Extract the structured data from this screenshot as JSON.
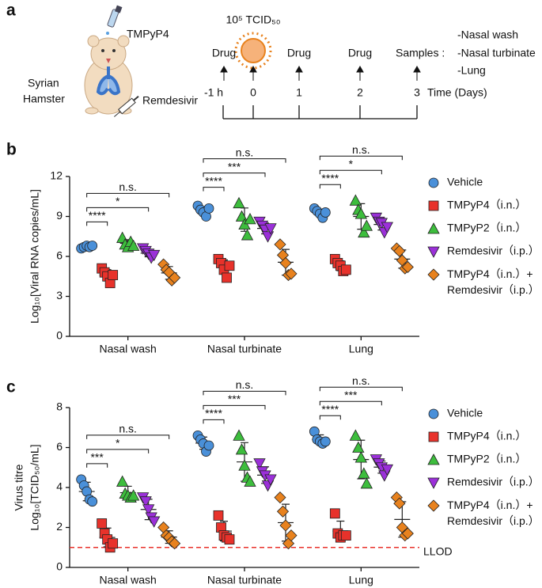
{
  "schematic": {
    "panel": "a",
    "drug_label": "TMPyP4",
    "animal": [
      "Syrian",
      "Hamster"
    ],
    "injection": "Remdesivir",
    "inoculum": "10⁵ TCID₅₀",
    "drug_events": [
      "Drug",
      "Drug",
      "Drug"
    ],
    "samples_label": "Samples :",
    "samples": [
      "-Nasal wash",
      "-Nasal turbinate",
      "-Lung"
    ],
    "timepoints": [
      "-1 h",
      "0",
      "1",
      "2",
      "3"
    ],
    "time_axis": "Time (Days)"
  },
  "chart_data": [
    {
      "type": "dot_plot",
      "panel": "b",
      "ylabel_lines": [
        "Log₁₀[Viral RNA copies/mL]"
      ],
      "categories": [
        "Nasal wash",
        "Nasal turbinate",
        "Lung"
      ],
      "ylim": [
        0,
        12
      ],
      "yticks": [
        0,
        3,
        6,
        9,
        12
      ],
      "series": [
        {
          "name": "Vehicle",
          "color": "#4a90d9",
          "marker": "circle",
          "values": [
            [
              6.6,
              6.7,
              6.8,
              6.7,
              6.8
            ],
            [
              9.8,
              9.5,
              9.3,
              9.0,
              9.6
            ],
            [
              9.6,
              9.4,
              9.2,
              8.9,
              9.3
            ]
          ]
        },
        {
          "name": "TMPyP4（i.n.）",
          "color": "#e8322b",
          "marker": "square",
          "values": [
            [
              5.1,
              4.8,
              4.5,
              4.0,
              4.6
            ],
            [
              5.8,
              5.5,
              5.0,
              4.4,
              5.3
            ],
            [
              5.8,
              5.5,
              5.3,
              4.9,
              5.0
            ]
          ]
        },
        {
          "name": "TMPyP2（i.n.）",
          "color": "#3dbd3d",
          "marker": "triangle-up",
          "values": [
            [
              7.4,
              6.9,
              6.7,
              7.1,
              6.8
            ],
            [
              10.0,
              9.0,
              8.4,
              7.6,
              8.8
            ],
            [
              10.2,
              9.5,
              9.2,
              7.8,
              8.3
            ]
          ]
        },
        {
          "name": "Remdesivir（i.p.）",
          "color": "#9b30d9",
          "marker": "triangle-down",
          "values": [
            [
              6.6,
              6.4,
              6.2,
              5.9,
              6.1
            ],
            [
              8.6,
              8.3,
              8.0,
              7.5,
              8.1
            ],
            [
              8.9,
              8.6,
              8.5,
              7.8,
              8.2
            ]
          ]
        },
        {
          "name": "TMPyP4（i.n.）+\nRemdesivir（i.p.）",
          "color": "#e8821e",
          "marker": "diamond",
          "values": [
            [
              5.4,
              5.0,
              4.8,
              4.2,
              4.4
            ],
            [
              6.9,
              6.1,
              5.5,
              4.6,
              4.7
            ],
            [
              6.6,
              6.4,
              5.7,
              5.1,
              5.2
            ]
          ]
        }
      ],
      "brackets": [
        [
          "****",
          "*",
          "n.s."
        ],
        [
          "****",
          "***",
          "n.s."
        ],
        [
          "****",
          "*",
          "n.s."
        ]
      ]
    },
    {
      "type": "dot_plot",
      "panel": "c",
      "ylabel_lines": [
        "Virus titre",
        "Log₁₀[TCID₅₀/mL]"
      ],
      "categories": [
        "Nasal wash",
        "Nasal turbinate",
        "Lung"
      ],
      "ylim": [
        0,
        8
      ],
      "yticks": [
        0,
        2,
        4,
        6,
        8
      ],
      "reference_line": {
        "value": 1,
        "label": "LLOD",
        "color": "#e8322b"
      },
      "series": [
        {
          "name": "Vehicle",
          "color": "#4a90d9",
          "marker": "circle",
          "values": [
            [
              4.4,
              4.1,
              3.8,
              3.4,
              3.3
            ],
            [
              6.6,
              6.4,
              6.2,
              5.8,
              6.1
            ],
            [
              6.8,
              6.4,
              6.3,
              6.2,
              6.3
            ]
          ]
        },
        {
          "name": "TMPyP4（i.n.）",
          "color": "#e8322b",
          "marker": "square",
          "values": [
            [
              2.2,
              1.7,
              1.4,
              1.0,
              1.2
            ],
            [
              2.6,
              2.0,
              1.6,
              1.5,
              1.4
            ],
            [
              2.7,
              1.7,
              1.5,
              1.6,
              1.6
            ]
          ]
        },
        {
          "name": "TMPyP2（i.n.）",
          "color": "#3dbd3d",
          "marker": "triangle-up",
          "values": [
            [
              4.3,
              3.7,
              3.6,
              3.5,
              3.6
            ],
            [
              6.6,
              5.9,
              5.1,
              4.5,
              4.3
            ],
            [
              6.6,
              6.0,
              5.5,
              4.7,
              4.2
            ]
          ]
        },
        {
          "name": "Remdesivir（i.p.）",
          "color": "#9b30d9",
          "marker": "triangle-down",
          "values": [
            [
              3.5,
              3.3,
              2.9,
              2.5,
              2.3
            ],
            [
              5.2,
              4.8,
              4.6,
              4.1,
              4.4
            ],
            [
              5.4,
              5.2,
              5.0,
              4.6,
              4.9
            ]
          ]
        },
        {
          "name": "TMPyP4（i.n.）+\nRemdesivir（i.p.）",
          "color": "#e8821e",
          "marker": "diamond",
          "values": [
            [
              2.0,
              1.6,
              1.5,
              1.3,
              1.2
            ],
            [
              3.5,
              2.8,
              2.1,
              1.2,
              1.6
            ],
            [
              3.5,
              3.2,
              2.0,
              1.6,
              1.7
            ]
          ]
        }
      ],
      "brackets": [
        [
          "***",
          "*",
          "n.s."
        ],
        [
          "****",
          "***",
          "n.s."
        ],
        [
          "****",
          "***",
          "n.s."
        ]
      ]
    }
  ]
}
